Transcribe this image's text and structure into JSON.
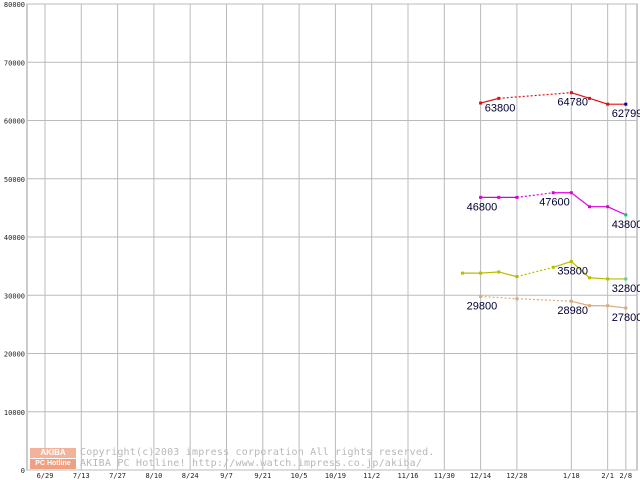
{
  "chart_data": {
    "type": "line",
    "title": "",
    "xlabel": "",
    "ylabel": "",
    "ylim": [
      0,
      80000
    ],
    "y_ticks": [
      "0",
      "10000",
      "20000",
      "30000",
      "40000",
      "50000",
      "60000",
      "70000",
      "80000"
    ],
    "x_ticks": [
      "6/29",
      "7/13",
      "7/27",
      "8/10",
      "8/24",
      "9/7",
      "9/21",
      "10/5",
      "10/19",
      "11/2",
      "11/16",
      "11/30",
      "12/14",
      "12/28",
      "1/18",
      "2/1",
      "2/8"
    ],
    "grid": true,
    "series": [
      {
        "name": "series-red",
        "color": "#dd1111",
        "end_marker_color": "#0000aa",
        "points": [
          {
            "x": "12/14",
            "y": 63000
          },
          {
            "x": "12/21",
            "y": 63800
          },
          {
            "x": "1/18",
            "y": 64780
          },
          {
            "x": "1/25",
            "y": 63800
          },
          {
            "x": "2/1",
            "y": 62799
          },
          {
            "x": "2/8",
            "y": 62799
          }
        ]
      },
      {
        "name": "series-magenta",
        "color": "#dd00dd",
        "end_marker_color": "#00cc66",
        "points": [
          {
            "x": "12/14",
            "y": 46800
          },
          {
            "x": "12/21",
            "y": 46800
          },
          {
            "x": "12/28",
            "y": 46800
          },
          {
            "x": "1/11",
            "y": 47600
          },
          {
            "x": "1/18",
            "y": 47600
          },
          {
            "x": "1/25",
            "y": 45200
          },
          {
            "x": "2/1",
            "y": 45200
          },
          {
            "x": "2/8",
            "y": 43800
          }
        ]
      },
      {
        "name": "series-olive",
        "color": "#bbbb00",
        "end_marker_color": "#66cc88",
        "points": [
          {
            "x": "12/7",
            "y": 33800
          },
          {
            "x": "12/14",
            "y": 33800
          },
          {
            "x": "12/21",
            "y": 34000
          },
          {
            "x": "12/28",
            "y": 33200
          },
          {
            "x": "1/11",
            "y": 34800
          },
          {
            "x": "1/18",
            "y": 35800
          },
          {
            "x": "1/25",
            "y": 33000
          },
          {
            "x": "2/1",
            "y": 32800
          },
          {
            "x": "2/8",
            "y": 32800
          }
        ]
      },
      {
        "name": "series-tan",
        "color": "#d8aa80",
        "end_marker_color": "#d8aa80",
        "points": [
          {
            "x": "12/14",
            "y": 29800
          },
          {
            "x": "12/28",
            "y": 29400
          },
          {
            "x": "1/18",
            "y": 28980
          },
          {
            "x": "1/25",
            "y": 28200
          },
          {
            "x": "2/1",
            "y": 28200
          },
          {
            "x": "2/8",
            "y": 27800
          }
        ]
      }
    ],
    "annotations": [
      {
        "text": "63800",
        "x": "12/21",
        "y": 63800
      },
      {
        "text": "64780",
        "x": "1/18",
        "y": 64780
      },
      {
        "text": "62799",
        "x": "2/8",
        "y": 62799
      },
      {
        "text": "46800",
        "x": "12/14",
        "y": 46800
      },
      {
        "text": "47600",
        "x": "1/11",
        "y": 47600
      },
      {
        "text": "43800",
        "x": "2/8",
        "y": 43800
      },
      {
        "text": "35800",
        "x": "1/18",
        "y": 35800
      },
      {
        "text": "32800",
        "x": "2/8",
        "y": 32800
      },
      {
        "text": "29800",
        "x": "12/14",
        "y": 29800
      },
      {
        "text": "28980",
        "x": "1/18",
        "y": 28980
      },
      {
        "text": "27800",
        "x": "2/8",
        "y": 27800
      }
    ]
  },
  "copyright": {
    "line1": "Copyright(c)2003 impress corporation All rights reserved.",
    "line2": "AKIBA PC Hotline!  http://www.watch.impress.co.jp/akiba/",
    "logo_top": "AKIBA",
    "logo_bottom": "PC Hotline"
  }
}
